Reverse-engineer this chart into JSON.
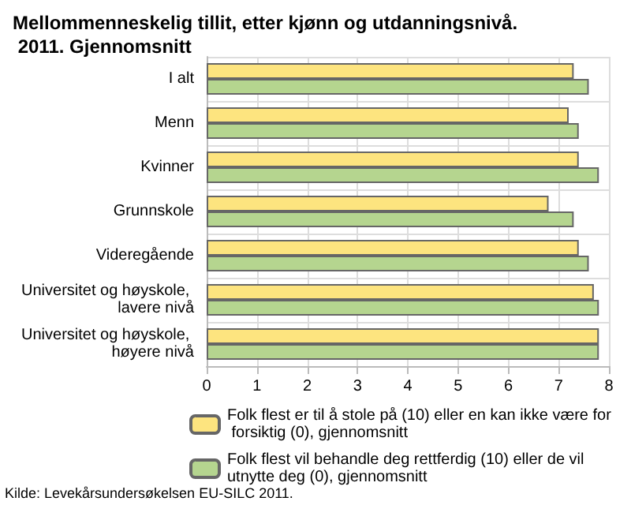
{
  "chart_data": {
    "type": "bar",
    "orientation": "horizontal",
    "title": "Mellommenneskelig tillit, etter kjønn og utdanningsnivå. 2011. Gjennomsnitt",
    "categories": [
      "I alt",
      "Menn",
      "Kvinner",
      "Grunnskole",
      "Videregående",
      "Universitet og høyskole, lavere nivå",
      "Universitet og høyskole, høyere nivå"
    ],
    "series": [
      {
        "name": "Folk flest er til å stole på (10) eller en kan ikke være for forsiktig (0), gjennomsnitt",
        "color": "#fde47f",
        "values": [
          7.3,
          7.2,
          7.4,
          6.8,
          7.4,
          7.7,
          7.8
        ]
      },
      {
        "name": "Folk flest vil behandle deg rettferdig (10) eller de vil utnytte deg (0), gjennomsnitt",
        "color": "#b5d58f",
        "values": [
          7.6,
          7.4,
          7.8,
          7.3,
          7.6,
          7.8,
          7.8
        ]
      }
    ],
    "xlim": [
      0,
      8
    ],
    "xticks": [
      0,
      1,
      2,
      3,
      4,
      5,
      6,
      7,
      8
    ],
    "grid": true,
    "legend": "bottom",
    "annotations": [
      "Kilde: Levekårsundersøkelsen EU-SILC 2011."
    ]
  }
}
